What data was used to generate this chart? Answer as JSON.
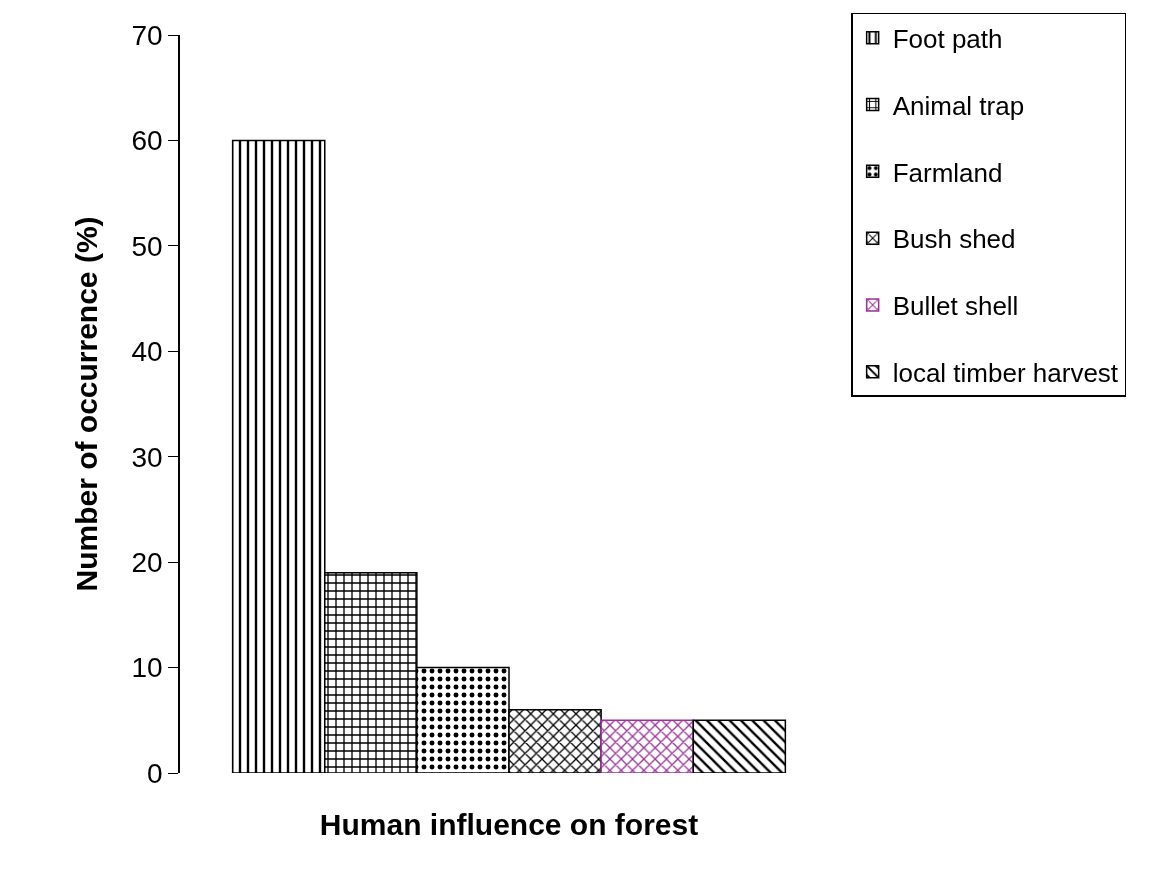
{
  "chart_data": {
    "type": "bar",
    "xlabel": "Human influence on forest",
    "ylabel": "Number of occurrence (%)",
    "categories": [
      null
    ],
    "series": [
      {
        "name": "Foot path",
        "color": "#000000",
        "values": [
          60
        ]
      },
      {
        "name": "Animal trap",
        "color": "#000000",
        "values": [
          19
        ]
      },
      {
        "name": "Farmland",
        "color": "#000000",
        "values": [
          10
        ]
      },
      {
        "name": "Bush shed",
        "color": "#000000",
        "values": [
          6
        ]
      },
      {
        "name": "Bullet shell",
        "color": "#993399",
        "values": [
          5
        ]
      },
      {
        "name": "local timber harvest",
        "color": "#000000",
        "values": [
          5
        ]
      }
    ],
    "ylim": [
      0,
      70
    ],
    "yticks": [
      0,
      10,
      20,
      30,
      40,
      50,
      60,
      70
    ],
    "grid": false,
    "legend": "right"
  }
}
